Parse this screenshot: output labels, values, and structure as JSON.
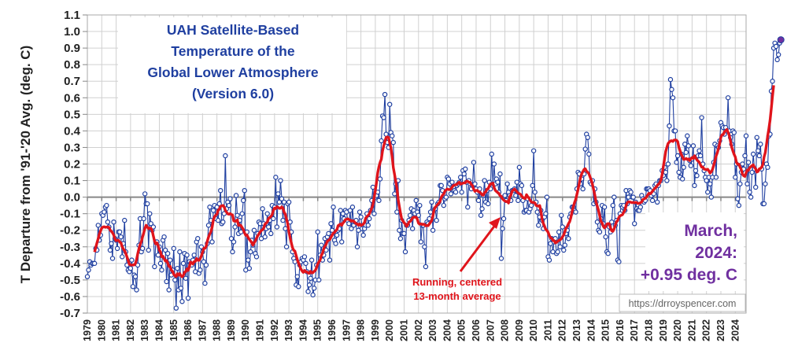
{
  "chart_data": {
    "type": "line",
    "title": "UAH Satellite-Based Temperature of the Global Lower Atmosphere (Version 6.0)",
    "title_lines": [
      "UAH Satellite-Based",
      "Temperature of the",
      "Global Lower Atmosphere",
      "(Version 6.0)"
    ],
    "ylabel": "T Departure from '91-'20 Avg. (deg. C)",
    "xlabel": "",
    "ylim": [
      -0.7,
      1.1
    ],
    "ytick_step": 0.1,
    "yticks": [
      "1.1",
      "1.0",
      "0.9",
      "0.8",
      "0.7",
      "0.6",
      "0.5",
      "0.4",
      "0.3",
      "0.2",
      "0.1",
      "0.0",
      "-0.1",
      "-0.2",
      "-0.3",
      "-0.4",
      "-0.5",
      "-0.6",
      "-0.7"
    ],
    "xlim": [
      1979,
      2024.75
    ],
    "xticks": [
      "1979",
      "1980",
      "1981",
      "1982",
      "1983",
      "1984",
      "1985",
      "1986",
      "1987",
      "1988",
      "1989",
      "1990",
      "1991",
      "1992",
      "1993",
      "1994",
      "1995",
      "1996",
      "1997",
      "1998",
      "1999",
      "2000",
      "2001",
      "2002",
      "2003",
      "2004",
      "2005",
      "2006",
      "2007",
      "2008",
      "2009",
      "2010",
      "2011",
      "2012",
      "2013",
      "2014",
      "2015",
      "2016",
      "2017",
      "2018",
      "2019",
      "2020",
      "2021",
      "2022",
      "2023",
      "2024"
    ],
    "grid": true,
    "start": "1979-01",
    "end": "2024-03",
    "series": [
      {
        "name": "Monthly anomaly",
        "color": "#1f3fa0",
        "marker": "open-circle",
        "values": [
          -0.48,
          -0.44,
          -0.39,
          -0.41,
          -0.4,
          -0.4,
          -0.4,
          -0.31,
          -0.32,
          -0.17,
          -0.26,
          -0.23,
          -0.1,
          -0.11,
          -0.09,
          -0.06,
          -0.05,
          -0.15,
          -0.18,
          -0.32,
          -0.28,
          -0.37,
          -0.15,
          -0.25,
          -0.26,
          -0.31,
          -0.21,
          -0.21,
          -0.24,
          -0.36,
          -0.28,
          -0.14,
          -0.33,
          -0.41,
          -0.44,
          -0.45,
          -0.43,
          -0.38,
          -0.54,
          -0.47,
          -0.48,
          -0.56,
          -0.41,
          -0.29,
          -0.13,
          -0.33,
          -0.31,
          -0.13,
          0.02,
          -0.04,
          -0.04,
          -0.32,
          -0.1,
          -0.16,
          -0.2,
          -0.18,
          -0.42,
          -0.27,
          -0.27,
          -0.35,
          -0.3,
          -0.4,
          -0.44,
          -0.26,
          -0.24,
          -0.32,
          -0.51,
          -0.34,
          -0.56,
          -0.38,
          -0.47,
          -0.44,
          -0.31,
          -0.5,
          -0.67,
          -0.43,
          -0.56,
          -0.33,
          -0.55,
          -0.63,
          -0.4,
          -0.34,
          -0.49,
          -0.35,
          -0.61,
          -0.39,
          -0.4,
          -0.41,
          -0.38,
          -0.35,
          -0.45,
          -0.27,
          -0.25,
          -0.46,
          -0.44,
          -0.3,
          -0.33,
          -0.39,
          -0.52,
          -0.41,
          -0.28,
          -0.17,
          -0.06,
          -0.14,
          -0.27,
          -0.08,
          -0.05,
          -0.13,
          -0.06,
          -0.14,
          -0.04,
          0.04,
          -0.16,
          -0.15,
          -0.1,
          0.25,
          -0.07,
          -0.03,
          -0.05,
          -0.01,
          -0.25,
          -0.33,
          -0.27,
          -0.18,
          0.01,
          -0.11,
          -0.22,
          -0.14,
          -0.21,
          -0.1,
          -0.02,
          0.04,
          -0.44,
          -0.21,
          -0.38,
          -0.43,
          -0.33,
          -0.26,
          -0.29,
          -0.2,
          -0.34,
          -0.36,
          -0.22,
          -0.15,
          -0.16,
          -0.25,
          -0.07,
          -0.16,
          -0.24,
          -0.19,
          -0.1,
          -0.18,
          -0.14,
          -0.22,
          -0.05,
          -0.13,
          -0.06,
          0.12,
          -0.18,
          0.02,
          -0.03,
          0.1,
          -0.01,
          -0.14,
          -0.03,
          -0.19,
          -0.3,
          -0.04,
          -0.03,
          -0.15,
          -0.21,
          -0.33,
          -0.37,
          -0.39,
          -0.53,
          -0.48,
          -0.54,
          -0.41,
          -0.39,
          -0.37,
          -0.38,
          -0.36,
          -0.4,
          -0.45,
          -0.57,
          -0.53,
          -0.49,
          -0.38,
          -0.59,
          -0.55,
          -0.5,
          -0.41,
          -0.21,
          -0.5,
          -0.35,
          -0.29,
          -0.38,
          -0.35,
          -0.25,
          -0.32,
          -0.24,
          -0.22,
          -0.38,
          -0.16,
          -0.2,
          -0.06,
          -0.26,
          -0.28,
          -0.23,
          -0.2,
          -0.19,
          -0.08,
          -0.27,
          -0.1,
          -0.13,
          -0.08,
          -0.09,
          -0.14,
          -0.16,
          -0.08,
          -0.19,
          -0.06,
          -0.17,
          -0.15,
          -0.14,
          -0.3,
          -0.2,
          -0.09,
          -0.12,
          -0.19,
          -0.23,
          -0.19,
          -0.17,
          -0.1,
          -0.17,
          -0.13,
          -0.08,
          -0.02,
          0.06,
          -0.1,
          0.0,
          0.01,
          0.03,
          -0.02,
          0.11,
          0.34,
          0.49,
          0.48,
          0.62,
          0.38,
          0.33,
          0.3,
          0.56,
          0.39,
          0.37,
          0.33,
          0.02,
          0.08,
          -0.09,
          0.1,
          -0.2,
          -0.25,
          -0.14,
          -0.22,
          -0.22,
          -0.33,
          -0.17,
          -0.17,
          -0.14,
          -0.11,
          -0.07,
          -0.19,
          -0.08,
          -0.1,
          -0.02,
          -0.09,
          -0.11,
          -0.05,
          -0.27,
          -0.17,
          -0.17,
          -0.3,
          -0.42,
          -0.15,
          -0.16,
          -0.13,
          -0.09,
          -0.03,
          -0.2,
          -0.08,
          -0.07,
          -0.14,
          -0.04,
          -0.03,
          0.07,
          0.07,
          0.04,
          -0.05,
          -0.01,
          0.0,
          0.12,
          0.11,
          0.08,
          0.02,
          0.09,
          0.06,
          0.04,
          0.03,
          0.07,
          0.08,
          0.09,
          0.12,
          0.03,
          0.16,
          0.14,
          0.17,
          0.09,
          -0.06,
          0.1,
          0.08,
          0.05,
          0.07,
          0.21,
          0.08,
          0.05,
          0.03,
          -0.02,
          0.05,
          -0.11,
          -0.07,
          0.01,
          0.1,
          -0.03,
          0.04,
          -0.04,
          0.09,
          0.05,
          0.26,
          0.08,
          0.2,
          0.08,
          0.11,
          0.09,
          0.03,
          0.14,
          -0.37,
          -0.19,
          -0.13,
          0.01,
          -0.02,
          0.08,
          0.03,
          0.01,
          -0.02,
          0.04,
          0.04,
          0.05,
          0.01,
          0.09,
          -0.02,
          0.18,
          0.08,
          0.07,
          -0.02,
          -0.09,
          -0.08,
          -0.08,
          -0.01,
          -0.09,
          -0.07,
          -0.05,
          0.07,
          0.28,
          0.03,
          -0.03,
          -0.09,
          -0.17,
          -0.12,
          -0.08,
          -0.14,
          -0.19,
          -0.12,
          -0.1,
          0.0,
          -0.36,
          -0.38,
          -0.28,
          -0.25,
          -0.33,
          -0.27,
          -0.25,
          -0.34,
          -0.33,
          -0.21,
          -0.3,
          -0.11,
          -0.18,
          -0.32,
          -0.29,
          -0.22,
          -0.2,
          -0.25,
          -0.12,
          -0.1,
          -0.06,
          -0.06,
          -0.08,
          -0.09,
          0.05,
          0.15,
          0.14,
          0.08,
          0.11,
          0.05,
          0.14,
          0.29,
          0.38,
          0.36,
          0.26,
          0.09,
          0.08,
          0.1,
          -0.04,
          0.05,
          -0.03,
          -0.15,
          -0.2,
          -0.21,
          -0.13,
          -0.05,
          -0.16,
          -0.06,
          -0.24,
          -0.33,
          -0.34,
          -0.18,
          -0.21,
          -0.15,
          -0.05,
          0.0,
          -0.17,
          -0.14,
          -0.38,
          -0.39,
          -0.1,
          -0.05,
          -0.06,
          -0.05,
          -0.08,
          0.04,
          -0.04,
          0.0,
          0.04,
          0.03,
          0.0,
          0.0,
          -0.16,
          -0.03,
          -0.07,
          -0.08,
          -0.08,
          -0.06,
          0.01,
          -0.01,
          -0.03,
          -0.02,
          0.05,
          0.05,
          0.05,
          0.04,
          0.01,
          -0.02,
          0.02,
          0.07,
          0.08,
          -0.03,
          0.07,
          0.1,
          0.1,
          0.16,
          0.13,
          0.18,
          0.15,
          0.1,
          0.2,
          0.43,
          0.71,
          0.65,
          0.6,
          0.4,
          0.4,
          0.21,
          0.25,
          0.15,
          0.12,
          0.26,
          0.11,
          0.18,
          0.32,
          0.27,
          0.37,
          0.31,
          0.22,
          0.19,
          0.23,
          0.31,
          0.07,
          0.16,
          0.13,
          0.25,
          0.28,
          0.25,
          0.48,
          0.2,
          0.16,
          0.12,
          0.1,
          0.03,
          0.12,
          0.08,
          0.0,
          0.12,
          0.21,
          0.32,
          0.12,
          0.31,
          0.3,
          0.34,
          0.45,
          0.43,
          0.42,
          0.38,
          0.42,
          0.4,
          0.6,
          0.4,
          0.36,
          0.32,
          0.4,
          0.39,
          0.12,
          0.2,
          -0.01,
          -0.05,
          0.08,
          0.15,
          0.2,
          0.17,
          0.25,
          0.37,
          0.08,
          0.21,
          0.03,
          0.0,
          0.15,
          0.26,
          0.17,
          0.06,
          0.36,
          0.28,
          0.25,
          0.32,
          0.17,
          -0.04,
          -0.04,
          0.08,
          0.2,
          0.18,
          0.37,
          0.38,
          0.64,
          0.7,
          0.9,
          0.93,
          0.91,
          0.83,
          0.86,
          0.93,
          0.95
        ]
      },
      {
        "name": "Running, centered 13-month average",
        "color": "#e0141b",
        "marker": "none"
      }
    ],
    "highlight": {
      "label": "March, 2024",
      "value": 0.95,
      "color": "#7030a0"
    },
    "annotations": [
      {
        "text_lines": [
          "March,",
          "2024:",
          "+0.95 deg. C"
        ],
        "position": "lower-right",
        "color": "#7030a0"
      },
      {
        "text_lines": [
          "Running, centered",
          "13-month average"
        ],
        "position": "bottom-center",
        "color": "#e0141b",
        "arrow_to": "2008 running mean"
      },
      {
        "text": "https://drroyspencer.com",
        "position": "bottom-right"
      }
    ]
  }
}
